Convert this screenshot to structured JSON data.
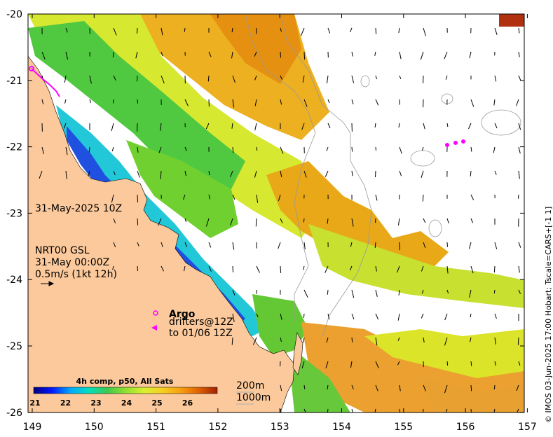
{
  "x_ticks": [
    "149",
    "150",
    "151",
    "152",
    "153",
    "154",
    "155",
    "156",
    "157"
  ],
  "y_ticks": [
    "-20",
    "-21",
    "-22",
    "-23",
    "-24",
    "-25",
    "-26"
  ],
  "date_label": "31-May-2025 10Z",
  "current_info": [
    "NRT00 GSL",
    "31-May 00:00Z",
    "0.5m/s (1kt 12h)"
  ],
  "argo": {
    "title": "Argo",
    "line1": "drifters@12Z",
    "line2": "to 01/06 12Z"
  },
  "colorbar": {
    "title": "4h comp, p50, All Sats",
    "ticks": [
      "21",
      "22",
      "23",
      "24",
      "25",
      "26"
    ],
    "colors": [
      "#00007f",
      "#0018ff",
      "#00a8ff",
      "#00e0c0",
      "#3cc850",
      "#90e030",
      "#d8f030",
      "#f8d020",
      "#f8a010",
      "#e06000",
      "#a02000"
    ]
  },
  "depth_legend": [
    "200m",
    "1000m"
  ],
  "credit": "© IMOS 03-Jun-2025 17:00 Hobart; Tscale=CARS+[-1 1]",
  "colors": {
    "land": "#fbc99b",
    "argo": "#ff00ff"
  }
}
